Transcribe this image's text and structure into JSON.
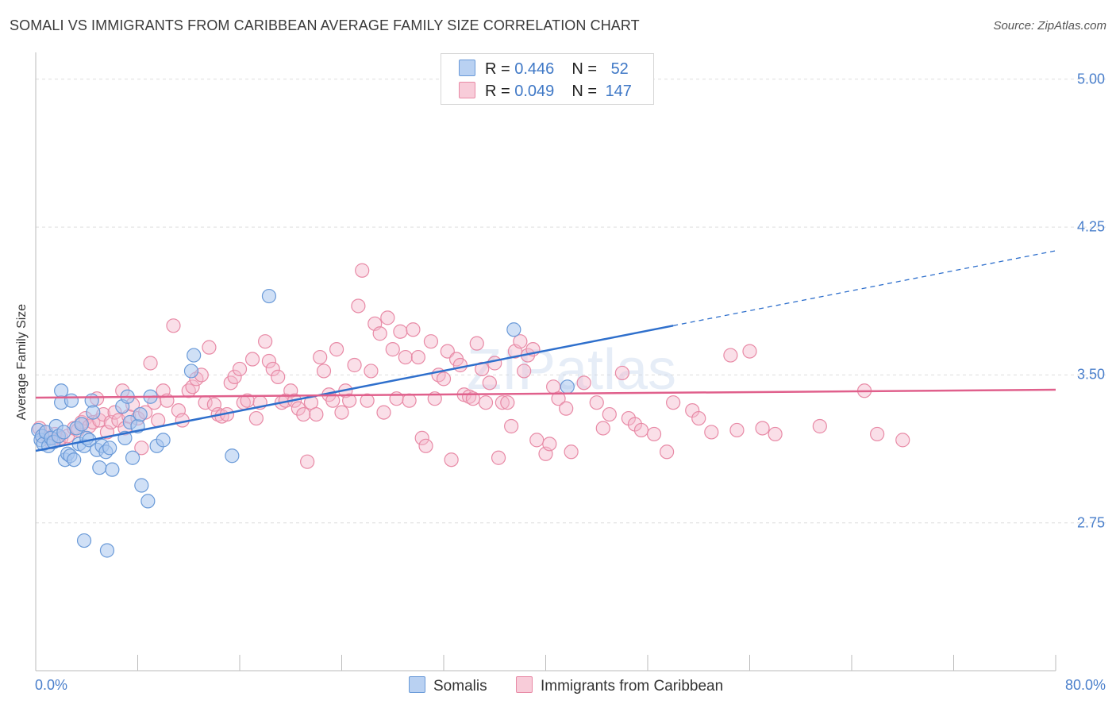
{
  "title": "SOMALI VS IMMIGRANTS FROM CARIBBEAN AVERAGE FAMILY SIZE CORRELATION CHART",
  "source": "Source: ZipAtlas.com",
  "watermark": "ZIPatlas",
  "legend": {
    "rows": [
      {
        "r_label": "R = ",
        "r_value": "0.446",
        "n_label": "N = ",
        "n_value": "52"
      },
      {
        "r_label": "R = ",
        "r_value": "0.049",
        "n_label": "N = ",
        "n_value": "147"
      }
    ]
  },
  "bottom_legend": [
    "Somalis",
    "Immigrants from Caribbean"
  ],
  "colors": {
    "blue_fill": "#a9c6ee",
    "blue_stroke": "#6a9ad8",
    "blue_line": "#2e6fcc",
    "pink_fill": "#f5b9cb",
    "pink_stroke": "#e88aa6",
    "pink_line": "#e0608c",
    "tick_text": "#4a7fcb",
    "grid": "#dddddd"
  },
  "chart_data": {
    "type": "scatter",
    "title": "SOMALI VS IMMIGRANTS FROM CARIBBEAN AVERAGE FAMILY SIZE CORRELATION CHART",
    "xlabel": "",
    "ylabel": "Average Family Size",
    "xlim": [
      0,
      80
    ],
    "ylim": [
      2.0,
      5.12
    ],
    "x_tick_labels": [
      "0.0%",
      "80.0%"
    ],
    "y_ticks": [
      2.75,
      3.5,
      4.25,
      5.0
    ],
    "y_tick_labels": [
      "2.75",
      "3.50",
      "4.25",
      "5.00"
    ],
    "grid": true,
    "legend_position": "top-center",
    "series": [
      {
        "name": "Somalis",
        "r": 0.446,
        "n": 52,
        "trend": {
          "x0": 0,
          "y0": 3.115,
          "x1": 50,
          "y1": 3.75,
          "dashed_to_x": 80,
          "dashed_to_y": 4.13
        },
        "points": [
          [
            0.2,
            3.22
          ],
          [
            0.4,
            3.17
          ],
          [
            0.5,
            3.19
          ],
          [
            0.6,
            3.15
          ],
          [
            0.8,
            3.21
          ],
          [
            1.0,
            3.14
          ],
          [
            1.2,
            3.18
          ],
          [
            1.4,
            3.16
          ],
          [
            1.6,
            3.24
          ],
          [
            1.8,
            3.19
          ],
          [
            2.0,
            3.36
          ],
          [
            2.0,
            3.42
          ],
          [
            2.2,
            3.21
          ],
          [
            2.3,
            3.07
          ],
          [
            2.5,
            3.1
          ],
          [
            2.7,
            3.09
          ],
          [
            2.8,
            3.37
          ],
          [
            3.0,
            3.07
          ],
          [
            3.2,
            3.23
          ],
          [
            3.4,
            3.15
          ],
          [
            3.6,
            3.25
          ],
          [
            3.8,
            3.14
          ],
          [
            4.0,
            3.18
          ],
          [
            4.2,
            3.17
          ],
          [
            4.4,
            3.37
          ],
          [
            4.5,
            3.31
          ],
          [
            4.8,
            3.12
          ],
          [
            5.0,
            3.03
          ],
          [
            5.2,
            3.14
          ],
          [
            5.5,
            3.11
          ],
          [
            5.8,
            3.13
          ],
          [
            6.0,
            3.02
          ],
          [
            6.8,
            3.34
          ],
          [
            7.2,
            3.39
          ],
          [
            7.0,
            3.18
          ],
          [
            7.4,
            3.26
          ],
          [
            7.6,
            3.08
          ],
          [
            8.0,
            3.24
          ],
          [
            8.2,
            3.3
          ],
          [
            8.3,
            2.94
          ],
          [
            8.8,
            2.86
          ],
          [
            9.0,
            3.39
          ],
          [
            9.5,
            3.14
          ],
          [
            10.0,
            3.17
          ],
          [
            3.8,
            2.66
          ],
          [
            5.6,
            2.61
          ],
          [
            12.4,
            3.6
          ],
          [
            12.2,
            3.52
          ],
          [
            15.4,
            3.09
          ],
          [
            18.3,
            3.9
          ],
          [
            37.5,
            3.73
          ],
          [
            41.7,
            3.44
          ]
        ]
      },
      {
        "name": "Immigrants from Caribbean",
        "r": 0.049,
        "n": 147,
        "trend": {
          "x0": 0,
          "y0": 3.385,
          "x1": 80,
          "y1": 3.425
        },
        "points": [
          [
            0.3,
            3.23
          ],
          [
            0.5,
            3.19
          ],
          [
            0.8,
            3.21
          ],
          [
            1.0,
            3.18
          ],
          [
            1.2,
            3.16
          ],
          [
            1.5,
            3.2
          ],
          [
            1.8,
            3.17
          ],
          [
            2.0,
            3.18
          ],
          [
            2.5,
            3.19
          ],
          [
            3.0,
            3.23
          ],
          [
            3.3,
            3.22
          ],
          [
            3.6,
            3.26
          ],
          [
            3.9,
            3.28
          ],
          [
            4.2,
            3.24
          ],
          [
            4.5,
            3.26
          ],
          [
            4.8,
            3.38
          ],
          [
            5.0,
            3.27
          ],
          [
            5.3,
            3.3
          ],
          [
            5.6,
            3.21
          ],
          [
            5.9,
            3.26
          ],
          [
            6.2,
            3.31
          ],
          [
            6.5,
            3.27
          ],
          [
            6.8,
            3.42
          ],
          [
            7.0,
            3.23
          ],
          [
            7.3,
            3.29
          ],
          [
            7.6,
            3.35
          ],
          [
            8.0,
            3.28
          ],
          [
            8.3,
            3.13
          ],
          [
            8.6,
            3.31
          ],
          [
            9.0,
            3.56
          ],
          [
            9.3,
            3.36
          ],
          [
            9.6,
            3.27
          ],
          [
            10.0,
            3.42
          ],
          [
            10.3,
            3.37
          ],
          [
            10.8,
            3.75
          ],
          [
            11.2,
            3.32
          ],
          [
            11.5,
            3.27
          ],
          [
            12.0,
            3.42
          ],
          [
            12.3,
            3.44
          ],
          [
            12.6,
            3.48
          ],
          [
            13.0,
            3.5
          ],
          [
            13.3,
            3.36
          ],
          [
            13.6,
            3.64
          ],
          [
            14.0,
            3.35
          ],
          [
            14.3,
            3.3
          ],
          [
            14.6,
            3.29
          ],
          [
            15.0,
            3.3
          ],
          [
            15.3,
            3.46
          ],
          [
            15.6,
            3.49
          ],
          [
            16.0,
            3.53
          ],
          [
            16.3,
            3.36
          ],
          [
            16.6,
            3.37
          ],
          [
            17.0,
            3.58
          ],
          [
            17.3,
            3.28
          ],
          [
            17.6,
            3.36
          ],
          [
            18.0,
            3.67
          ],
          [
            18.3,
            3.57
          ],
          [
            18.6,
            3.53
          ],
          [
            19.0,
            3.49
          ],
          [
            19.3,
            3.36
          ],
          [
            19.6,
            3.37
          ],
          [
            20.0,
            3.42
          ],
          [
            20.3,
            3.37
          ],
          [
            20.6,
            3.33
          ],
          [
            21.0,
            3.3
          ],
          [
            21.3,
            3.06
          ],
          [
            21.6,
            3.36
          ],
          [
            22.0,
            3.3
          ],
          [
            22.3,
            3.59
          ],
          [
            22.6,
            3.52
          ],
          [
            23.0,
            3.4
          ],
          [
            23.3,
            3.37
          ],
          [
            23.6,
            3.63
          ],
          [
            24.0,
            3.31
          ],
          [
            24.3,
            3.42
          ],
          [
            24.6,
            3.37
          ],
          [
            25.0,
            3.55
          ],
          [
            25.3,
            3.85
          ],
          [
            25.6,
            4.03
          ],
          [
            26.0,
            3.37
          ],
          [
            26.3,
            3.52
          ],
          [
            26.6,
            3.76
          ],
          [
            27.0,
            3.71
          ],
          [
            27.3,
            3.31
          ],
          [
            27.6,
            3.79
          ],
          [
            28.0,
            3.63
          ],
          [
            28.3,
            3.38
          ],
          [
            28.6,
            3.72
          ],
          [
            29.0,
            3.59
          ],
          [
            29.3,
            3.37
          ],
          [
            29.6,
            3.73
          ],
          [
            30.0,
            3.59
          ],
          [
            30.3,
            3.18
          ],
          [
            30.6,
            3.14
          ],
          [
            31.0,
            3.67
          ],
          [
            31.3,
            3.38
          ],
          [
            31.6,
            3.5
          ],
          [
            32.0,
            3.48
          ],
          [
            32.3,
            3.62
          ],
          [
            32.6,
            3.07
          ],
          [
            33.0,
            3.58
          ],
          [
            33.3,
            3.55
          ],
          [
            33.6,
            3.4
          ],
          [
            34.0,
            3.39
          ],
          [
            34.3,
            3.38
          ],
          [
            34.6,
            3.66
          ],
          [
            35.0,
            3.53
          ],
          [
            35.3,
            3.36
          ],
          [
            35.6,
            3.46
          ],
          [
            36.0,
            3.56
          ],
          [
            36.3,
            3.08
          ],
          [
            36.6,
            3.36
          ],
          [
            37.0,
            3.36
          ],
          [
            37.3,
            3.24
          ],
          [
            37.6,
            3.62
          ],
          [
            38.0,
            3.67
          ],
          [
            38.3,
            3.52
          ],
          [
            38.6,
            3.6
          ],
          [
            39.0,
            3.63
          ],
          [
            39.3,
            3.17
          ],
          [
            40.0,
            3.1
          ],
          [
            40.3,
            3.15
          ],
          [
            40.6,
            3.44
          ],
          [
            41.0,
            3.38
          ],
          [
            41.6,
            3.33
          ],
          [
            42.0,
            3.11
          ],
          [
            43.0,
            3.46
          ],
          [
            44.0,
            3.36
          ],
          [
            44.5,
            3.23
          ],
          [
            46.0,
            3.51
          ],
          [
            46.5,
            3.28
          ],
          [
            47.0,
            3.25
          ],
          [
            47.5,
            3.22
          ],
          [
            48.5,
            3.2
          ],
          [
            49.5,
            3.11
          ],
          [
            50.0,
            3.36
          ],
          [
            51.5,
            3.32
          ],
          [
            53.0,
            3.21
          ],
          [
            54.5,
            3.6
          ],
          [
            55.0,
            3.22
          ],
          [
            56.0,
            3.62
          ],
          [
            58.0,
            3.2
          ],
          [
            61.5,
            3.24
          ],
          [
            65.0,
            3.42
          ],
          [
            66.0,
            3.2
          ],
          [
            68.0,
            3.17
          ],
          [
            57.0,
            3.23
          ],
          [
            52.0,
            3.28
          ],
          [
            45.0,
            3.3
          ]
        ]
      }
    ]
  }
}
